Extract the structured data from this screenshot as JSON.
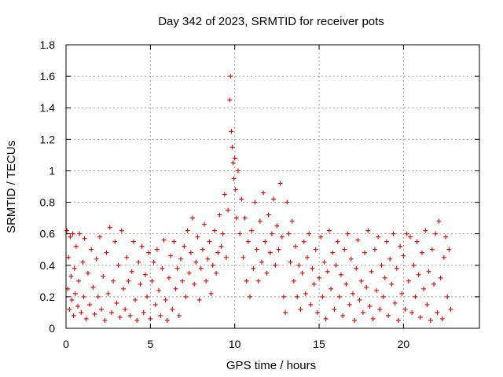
{
  "chart_data": {
    "type": "scatter",
    "title": "Day 342 of 2023, SRMTID for receiver pots",
    "xlabel": "GPS time / hours",
    "ylabel": "SRMTID / TECUs",
    "xlim": [
      0,
      24.5
    ],
    "ylim": [
      0,
      1.8
    ],
    "xticks": [
      0,
      5,
      10,
      15,
      20
    ],
    "yticks": [
      0,
      0.2,
      0.4,
      0.6,
      0.8,
      1,
      1.2,
      1.4,
      1.6,
      1.8
    ],
    "x_tick_labels": [
      "0",
      "5",
      "10",
      "15",
      "20"
    ],
    "y_tick_labels": [
      "0",
      "0.2",
      "0.4",
      "0.6",
      "0.8",
      "1",
      "1.2",
      "1.4",
      "1.6",
      "1.8"
    ],
    "grid": true,
    "marker": "plus",
    "color": "#e00000",
    "series": [
      {
        "name": "SRMTID",
        "points": [
          [
            0.05,
            0.62
          ],
          [
            0.1,
            0.25
          ],
          [
            0.15,
            0.45
          ],
          [
            0.2,
            0.12
          ],
          [
            0.25,
            0.58
          ],
          [
            0.3,
            0.33
          ],
          [
            0.35,
            0.18
          ],
          [
            0.4,
            0.6
          ],
          [
            0.45,
            0.08
          ],
          [
            0.5,
            0.38
          ],
          [
            0.55,
            0.22
          ],
          [
            0.6,
            0.52
          ],
          [
            0.7,
            0.14
          ],
          [
            0.75,
            0.3
          ],
          [
            0.8,
            0.6
          ],
          [
            0.9,
            0.1
          ],
          [
            1.0,
            0.42
          ],
          [
            1.05,
            0.2
          ],
          [
            1.1,
            0.57
          ],
          [
            1.2,
            0.06
          ],
          [
            1.3,
            0.35
          ],
          [
            1.4,
            0.15
          ],
          [
            1.5,
            0.5
          ],
          [
            1.6,
            0.26
          ],
          [
            1.7,
            0.09
          ],
          [
            1.8,
            0.44
          ],
          [
            1.9,
            0.2
          ],
          [
            2.0,
            0.58
          ],
          [
            2.1,
            0.12
          ],
          [
            2.2,
            0.33
          ],
          [
            2.3,
            0.05
          ],
          [
            2.4,
            0.48
          ],
          [
            2.5,
            0.22
          ],
          [
            2.6,
            0.64
          ],
          [
            2.7,
            0.1
          ],
          [
            2.8,
            0.3
          ],
          [
            2.9,
            0.55
          ],
          [
            3.0,
            0.16
          ],
          [
            3.1,
            0.4
          ],
          [
            3.2,
            0.07
          ],
          [
            3.3,
            0.62
          ],
          [
            3.4,
            0.25
          ],
          [
            3.5,
            0.12
          ],
          [
            3.6,
            0.45
          ],
          [
            3.7,
            0.3
          ],
          [
            3.8,
            0.08
          ],
          [
            3.9,
            0.36
          ],
          [
            4.0,
            0.55
          ],
          [
            4.1,
            0.18
          ],
          [
            4.2,
            0.05
          ],
          [
            4.3,
            0.42
          ],
          [
            4.4,
            0.28
          ],
          [
            4.5,
            0.52
          ],
          [
            4.6,
            0.1
          ],
          [
            4.7,
            0.34
          ],
          [
            4.8,
            0.2
          ],
          [
            4.9,
            0.48
          ],
          [
            5.0,
            0.06
          ],
          [
            5.1,
            0.3
          ],
          [
            5.2,
            0.42
          ],
          [
            5.3,
            0.15
          ],
          [
            5.4,
            0.5
          ],
          [
            5.5,
            0.24
          ],
          [
            5.6,
            0.08
          ],
          [
            5.7,
            0.38
          ],
          [
            5.8,
            0.56
          ],
          [
            5.9,
            0.18
          ],
          [
            6.0,
            0.05
          ],
          [
            6.1,
            0.32
          ],
          [
            6.2,
            0.46
          ],
          [
            6.3,
            0.12
          ],
          [
            6.4,
            0.55
          ],
          [
            6.5,
            0.25
          ],
          [
            6.6,
            0.38
          ],
          [
            6.7,
            0.08
          ],
          [
            6.8,
            0.44
          ],
          [
            6.9,
            0.3
          ],
          [
            7.0,
            0.52
          ],
          [
            7.1,
            0.2
          ],
          [
            7.2,
            0.62
          ],
          [
            7.3,
            0.35
          ],
          [
            7.4,
            0.48
          ],
          [
            7.5,
            0.7
          ],
          [
            7.6,
            0.28
          ],
          [
            7.7,
            0.42
          ],
          [
            7.8,
            0.58
          ],
          [
            7.9,
            0.18
          ],
          [
            8.0,
            0.38
          ],
          [
            8.1,
            0.5
          ],
          [
            8.2,
            0.66
          ],
          [
            8.3,
            0.3
          ],
          [
            8.4,
            0.44
          ],
          [
            8.5,
            0.55
          ],
          [
            8.6,
            0.22
          ],
          [
            8.7,
            0.4
          ],
          [
            8.8,
            0.62
          ],
          [
            8.9,
            0.35
          ],
          [
            9.0,
            0.48
          ],
          [
            9.1,
            0.72
          ],
          [
            9.2,
            0.52
          ],
          [
            9.3,
            0.6
          ],
          [
            9.4,
            0.85
          ],
          [
            9.5,
            0.45
          ],
          [
            9.6,
            0.75
          ],
          [
            9.7,
            1.45
          ],
          [
            9.75,
            1.6
          ],
          [
            9.8,
            1.25
          ],
          [
            9.85,
            1.15
          ],
          [
            9.9,
            1.05
          ],
          [
            9.95,
            0.95
          ],
          [
            10.0,
            1.08
          ],
          [
            10.05,
            0.88
          ],
          [
            10.1,
            0.7
          ],
          [
            10.2,
            1.0
          ],
          [
            10.3,
            0.6
          ],
          [
            10.4,
            0.82
          ],
          [
            10.5,
            0.45
          ],
          [
            10.6,
            0.7
          ],
          [
            10.7,
            0.3
          ],
          [
            10.8,
            0.55
          ],
          [
            10.9,
            0.2
          ],
          [
            11.0,
            0.62
          ],
          [
            11.1,
            0.38
          ],
          [
            11.2,
            0.8
          ],
          [
            11.3,
            0.5
          ],
          [
            11.4,
            0.3
          ],
          [
            11.5,
            0.68
          ],
          [
            11.6,
            0.42
          ],
          [
            11.7,
            0.86
          ],
          [
            11.8,
            0.55
          ],
          [
            11.9,
            0.35
          ],
          [
            12.0,
            0.72
          ],
          [
            12.1,
            0.48
          ],
          [
            12.2,
            0.6
          ],
          [
            12.3,
            0.82
          ],
          [
            12.4,
            0.4
          ],
          [
            12.5,
            0.65
          ],
          [
            12.6,
            0.5
          ],
          [
            12.7,
            0.92
          ],
          [
            12.8,
            0.58
          ],
          [
            12.9,
            0.2
          ],
          [
            13.0,
            0.1
          ],
          [
            13.1,
            0.8
          ],
          [
            13.2,
            0.6
          ],
          [
            13.3,
            0.42
          ],
          [
            13.4,
            0.68
          ],
          [
            13.5,
            0.3
          ],
          [
            13.6,
            0.52
          ],
          [
            13.7,
            0.2
          ],
          [
            13.8,
            0.4
          ],
          [
            13.9,
            0.12
          ],
          [
            14.0,
            0.35
          ],
          [
            14.1,
            0.55
          ],
          [
            14.2,
            0.22
          ],
          [
            14.3,
            0.45
          ],
          [
            14.4,
            0.6
          ],
          [
            14.5,
            0.15
          ],
          [
            14.6,
            0.38
          ],
          [
            14.7,
            0.28
          ],
          [
            14.8,
            0.5
          ],
          [
            14.9,
            0.1
          ],
          [
            15.0,
            0.32
          ],
          [
            15.1,
            0.58
          ],
          [
            15.2,
            0.2
          ],
          [
            15.3,
            0.42
          ],
          [
            15.4,
            0.06
          ],
          [
            15.5,
            0.36
          ],
          [
            15.6,
            0.62
          ],
          [
            15.7,
            0.25
          ],
          [
            15.8,
            0.48
          ],
          [
            15.9,
            0.12
          ],
          [
            16.0,
            0.4
          ],
          [
            16.1,
            0.55
          ],
          [
            16.2,
            0.2
          ],
          [
            16.3,
            0.34
          ],
          [
            16.4,
            0.08
          ],
          [
            16.5,
            0.5
          ],
          [
            16.6,
            0.28
          ],
          [
            16.7,
            0.6
          ],
          [
            16.8,
            0.15
          ],
          [
            16.9,
            0.44
          ],
          [
            17.0,
            0.22
          ],
          [
            17.1,
            0.05
          ],
          [
            17.2,
            0.38
          ],
          [
            17.3,
            0.56
          ],
          [
            17.4,
            0.18
          ],
          [
            17.5,
            0.3
          ],
          [
            17.6,
            0.1
          ],
          [
            17.7,
            0.48
          ],
          [
            17.8,
            0.26
          ],
          [
            17.9,
            0.62
          ],
          [
            18.0,
            0.14
          ],
          [
            18.1,
            0.36
          ],
          [
            18.2,
            0.06
          ],
          [
            18.3,
            0.5
          ],
          [
            18.4,
            0.24
          ],
          [
            18.5,
            0.58
          ],
          [
            18.6,
            0.12
          ],
          [
            18.7,
            0.4
          ],
          [
            18.8,
            0.2
          ],
          [
            18.9,
            0.32
          ],
          [
            19.0,
            0.55
          ],
          [
            19.1,
            0.08
          ],
          [
            19.2,
            0.44
          ],
          [
            19.3,
            0.28
          ],
          [
            19.4,
            0.6
          ],
          [
            19.5,
            0.16
          ],
          [
            19.6,
            0.38
          ],
          [
            19.7,
            0.05
          ],
          [
            19.8,
            0.52
          ],
          [
            19.9,
            0.22
          ],
          [
            20.0,
            0.46
          ],
          [
            20.1,
            0.12
          ],
          [
            20.2,
            0.6
          ],
          [
            20.3,
            0.3
          ],
          [
            20.4,
            0.58
          ],
          [
            20.5,
            0.1
          ],
          [
            20.6,
            0.4
          ],
          [
            20.7,
            0.2
          ],
          [
            20.8,
            0.55
          ],
          [
            20.9,
            0.34
          ],
          [
            21.0,
            0.07
          ],
          [
            21.1,
            0.48
          ],
          [
            21.2,
            0.25
          ],
          [
            21.3,
            0.62
          ],
          [
            21.4,
            0.15
          ],
          [
            21.5,
            0.36
          ],
          [
            21.6,
            0.05
          ],
          [
            21.7,
            0.5
          ],
          [
            21.8,
            0.28
          ],
          [
            21.9,
            0.6
          ],
          [
            22.0,
            0.1
          ],
          [
            22.1,
            0.68
          ],
          [
            22.2,
            0.32
          ],
          [
            22.3,
            0.06
          ],
          [
            22.4,
            0.45
          ],
          [
            22.5,
            0.58
          ],
          [
            22.6,
            0.2
          ],
          [
            22.7,
            0.5
          ],
          [
            22.8,
            0.12
          ]
        ]
      }
    ]
  }
}
